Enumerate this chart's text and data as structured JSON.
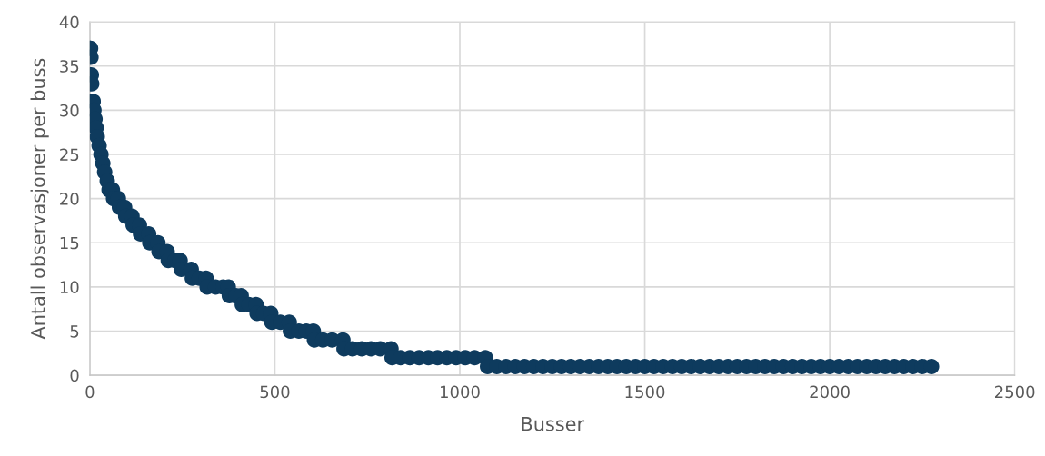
{
  "chart_data": {
    "type": "scatter",
    "xlabel": "Busser",
    "ylabel": "Antall observasjoner per buss",
    "xlim": [
      0,
      2500
    ],
    "xticks": [
      0,
      500,
      1000,
      1500,
      2000,
      2500
    ],
    "ylim": [
      0,
      40
    ],
    "yticks": [
      0,
      5,
      10,
      15,
      20,
      25,
      30,
      35,
      40
    ],
    "grid": true,
    "legend": false,
    "marker": "circle",
    "series": [
      {
        "color": "#0e3b5e",
        "x": [
          0,
          2,
          3,
          4,
          5,
          6,
          9,
          11,
          14,
          17,
          20,
          25,
          30,
          35,
          40,
          47,
          52,
          61,
          64,
          77,
          80,
          94,
          97,
          114,
          117,
          134,
          137,
          159,
          162,
          184,
          187,
          209,
          212,
          230,
          244,
          247,
          274,
          277,
          296,
          314,
          317,
          340,
          360,
          374,
          377,
          395,
          409,
          412,
          430,
          449,
          452,
          470,
          489,
          492,
          515,
          539,
          542,
          565,
          585,
          604,
          607,
          630,
          655,
          684,
          687,
          710,
          735,
          760,
          785,
          814,
          817,
          840,
          865,
          890,
          915,
          940,
          965,
          990,
          1015,
          1040,
          1069,
          1075,
          1100,
          1125,
          1150,
          1175,
          1200,
          1225,
          1250,
          1275,
          1300,
          1325,
          1350,
          1375,
          1400,
          1425,
          1450,
          1475,
          1500,
          1525,
          1550,
          1575,
          1600,
          1625,
          1650,
          1675,
          1700,
          1725,
          1750,
          1775,
          1800,
          1825,
          1850,
          1875,
          1900,
          1925,
          1950,
          1975,
          2000,
          2025,
          2050,
          2075,
          2100,
          2125,
          2150,
          2175,
          2200,
          2225,
          2250,
          2275
        ],
        "values": [
          37,
          37,
          36,
          34,
          33,
          31,
          31,
          30,
          29,
          28,
          27,
          26,
          25,
          24,
          23,
          22,
          21,
          21,
          20,
          20,
          19,
          19,
          18,
          18,
          17,
          17,
          16,
          16,
          15,
          15,
          14,
          14,
          13,
          13,
          13,
          12,
          12,
          11,
          11,
          11,
          10,
          10,
          10,
          10,
          9,
          9,
          9,
          8,
          8,
          8,
          7,
          7,
          7,
          6,
          6,
          6,
          5,
          5,
          5,
          5,
          4,
          4,
          4,
          4,
          3,
          3,
          3,
          3,
          3,
          3,
          2,
          2,
          2,
          2,
          2,
          2,
          2,
          2,
          2,
          2,
          2,
          1,
          1,
          1,
          1,
          1,
          1,
          1,
          1,
          1,
          1,
          1,
          1,
          1,
          1,
          1,
          1,
          1,
          1,
          1,
          1,
          1,
          1,
          1,
          1,
          1,
          1,
          1,
          1,
          1,
          1,
          1,
          1,
          1,
          1,
          1,
          1,
          1,
          1,
          1,
          1,
          1,
          1,
          1,
          1,
          1,
          1,
          1,
          1,
          1
        ]
      }
    ]
  }
}
